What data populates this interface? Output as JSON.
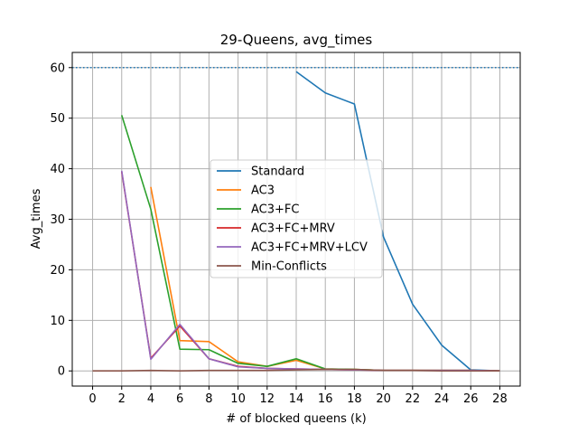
{
  "chart_data": {
    "type": "line",
    "title": "29-Queens, avg_times",
    "xlabel": "# of blocked queens (k)",
    "ylabel": "Avg_times",
    "xlim": [
      -1.4,
      29.4
    ],
    "ylim": [
      -3,
      63
    ],
    "x_ticks": [
      0,
      2,
      4,
      6,
      8,
      10,
      12,
      14,
      16,
      18,
      20,
      22,
      24,
      26,
      28
    ],
    "y_ticks": [
      0,
      10,
      20,
      30,
      40,
      50,
      60
    ],
    "grid": true,
    "legend_position": "center",
    "reference_line": {
      "y": 60,
      "style": "dotted",
      "color": "#1f77b4"
    },
    "series": [
      {
        "name": "Standard",
        "color": "#1f77b4",
        "x": [
          14,
          16,
          18,
          20,
          22,
          24,
          26,
          28
        ],
        "y": [
          59.2,
          55.0,
          52.8,
          26.5,
          13.2,
          5.1,
          0.2,
          0.0
        ]
      },
      {
        "name": "AC3",
        "color": "#ff7f0e",
        "x": [
          4,
          6,
          8,
          10,
          12,
          14,
          16,
          18,
          20,
          22,
          24,
          26,
          28
        ],
        "y": [
          36.4,
          6.0,
          5.8,
          1.8,
          0.9,
          2.1,
          0.4,
          0.3,
          0.1,
          0.1,
          0.1,
          0.1,
          0.0
        ]
      },
      {
        "name": "AC3+FC",
        "color": "#2ca02c",
        "x": [
          2,
          4,
          6,
          8,
          10,
          12,
          14,
          16,
          18,
          20,
          22,
          24,
          26,
          28
        ],
        "y": [
          50.6,
          32.0,
          4.3,
          4.2,
          1.5,
          0.9,
          2.4,
          0.4,
          0.3,
          0.1,
          0.1,
          0.1,
          0.1,
          0.0
        ]
      },
      {
        "name": "AC3+FC+MRV",
        "color": "#d62728",
        "x": [
          2,
          4,
          6,
          8,
          10,
          12,
          14,
          16,
          18,
          20,
          22,
          24,
          26,
          28
        ],
        "y": [
          39.4,
          2.5,
          8.9,
          2.4,
          0.9,
          0.5,
          0.4,
          0.3,
          0.2,
          0.1,
          0.1,
          0.1,
          0.1,
          0.0
        ]
      },
      {
        "name": "AC3+FC+MRV+LCV",
        "color": "#9467bd",
        "x": [
          2,
          4,
          6,
          8,
          10,
          12,
          14,
          16,
          18,
          20,
          22,
          24,
          26,
          28
        ],
        "y": [
          39.6,
          2.3,
          9.2,
          2.4,
          0.8,
          0.5,
          0.4,
          0.3,
          0.2,
          0.1,
          0.1,
          0.1,
          0.1,
          0.0
        ]
      },
      {
        "name": "Min-Conflicts",
        "color": "#8c564b",
        "x": [
          0,
          2,
          4,
          6,
          8,
          10,
          12,
          14,
          16,
          18,
          20,
          22,
          24,
          26,
          28
        ],
        "y": [
          0.0,
          0.0,
          0.1,
          0.0,
          0.1,
          0.1,
          0.1,
          0.2,
          0.3,
          0.3,
          0.1,
          0.1,
          0.0,
          0.0,
          0.0
        ]
      }
    ]
  }
}
